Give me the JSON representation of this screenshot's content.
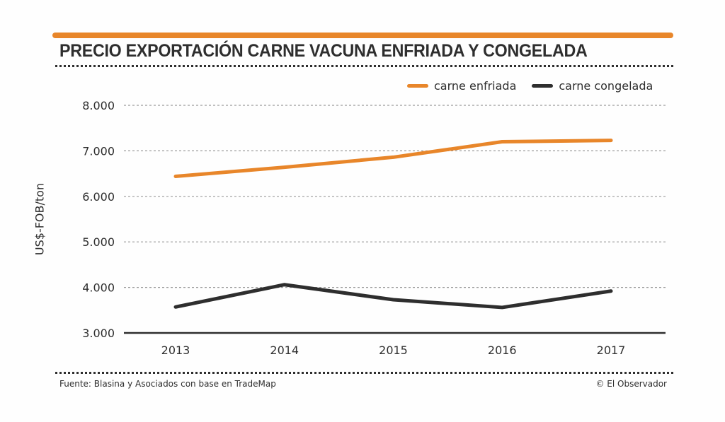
{
  "header": {
    "title": "PRECIO EXPORTACIÓN CARNE VACUNA ENFRIADA Y CONGELADA",
    "accent_color": "#e8862a"
  },
  "footer": {
    "source": "Fuente: Blasina y Asociados con base en TradeMap",
    "credit": "© El Observador"
  },
  "chart_data": {
    "type": "line",
    "title": "PRECIO EXPORTACIÓN CARNE VACUNA ENFRIADA Y CONGELADA",
    "xlabel": "",
    "ylabel": "US$-FOB/ton",
    "categories": [
      "2013",
      "2014",
      "2015",
      "2016",
      "2017"
    ],
    "ylim": [
      3000,
      8000
    ],
    "yticks": [
      3000,
      4000,
      5000,
      6000,
      7000,
      8000
    ],
    "ytick_labels": [
      "3.000",
      "4.000",
      "5.000",
      "6.000",
      "7.000",
      "8.000"
    ],
    "grid": true,
    "legend_position": "top-right",
    "series": [
      {
        "name": "carne enfriada",
        "color": "#e8862a",
        "values": [
          6440,
          6640,
          6860,
          7200,
          7230
        ]
      },
      {
        "name": "carne congelada",
        "color": "#2e2e2e",
        "values": [
          3570,
          4060,
          3730,
          3560,
          3920
        ]
      }
    ]
  }
}
